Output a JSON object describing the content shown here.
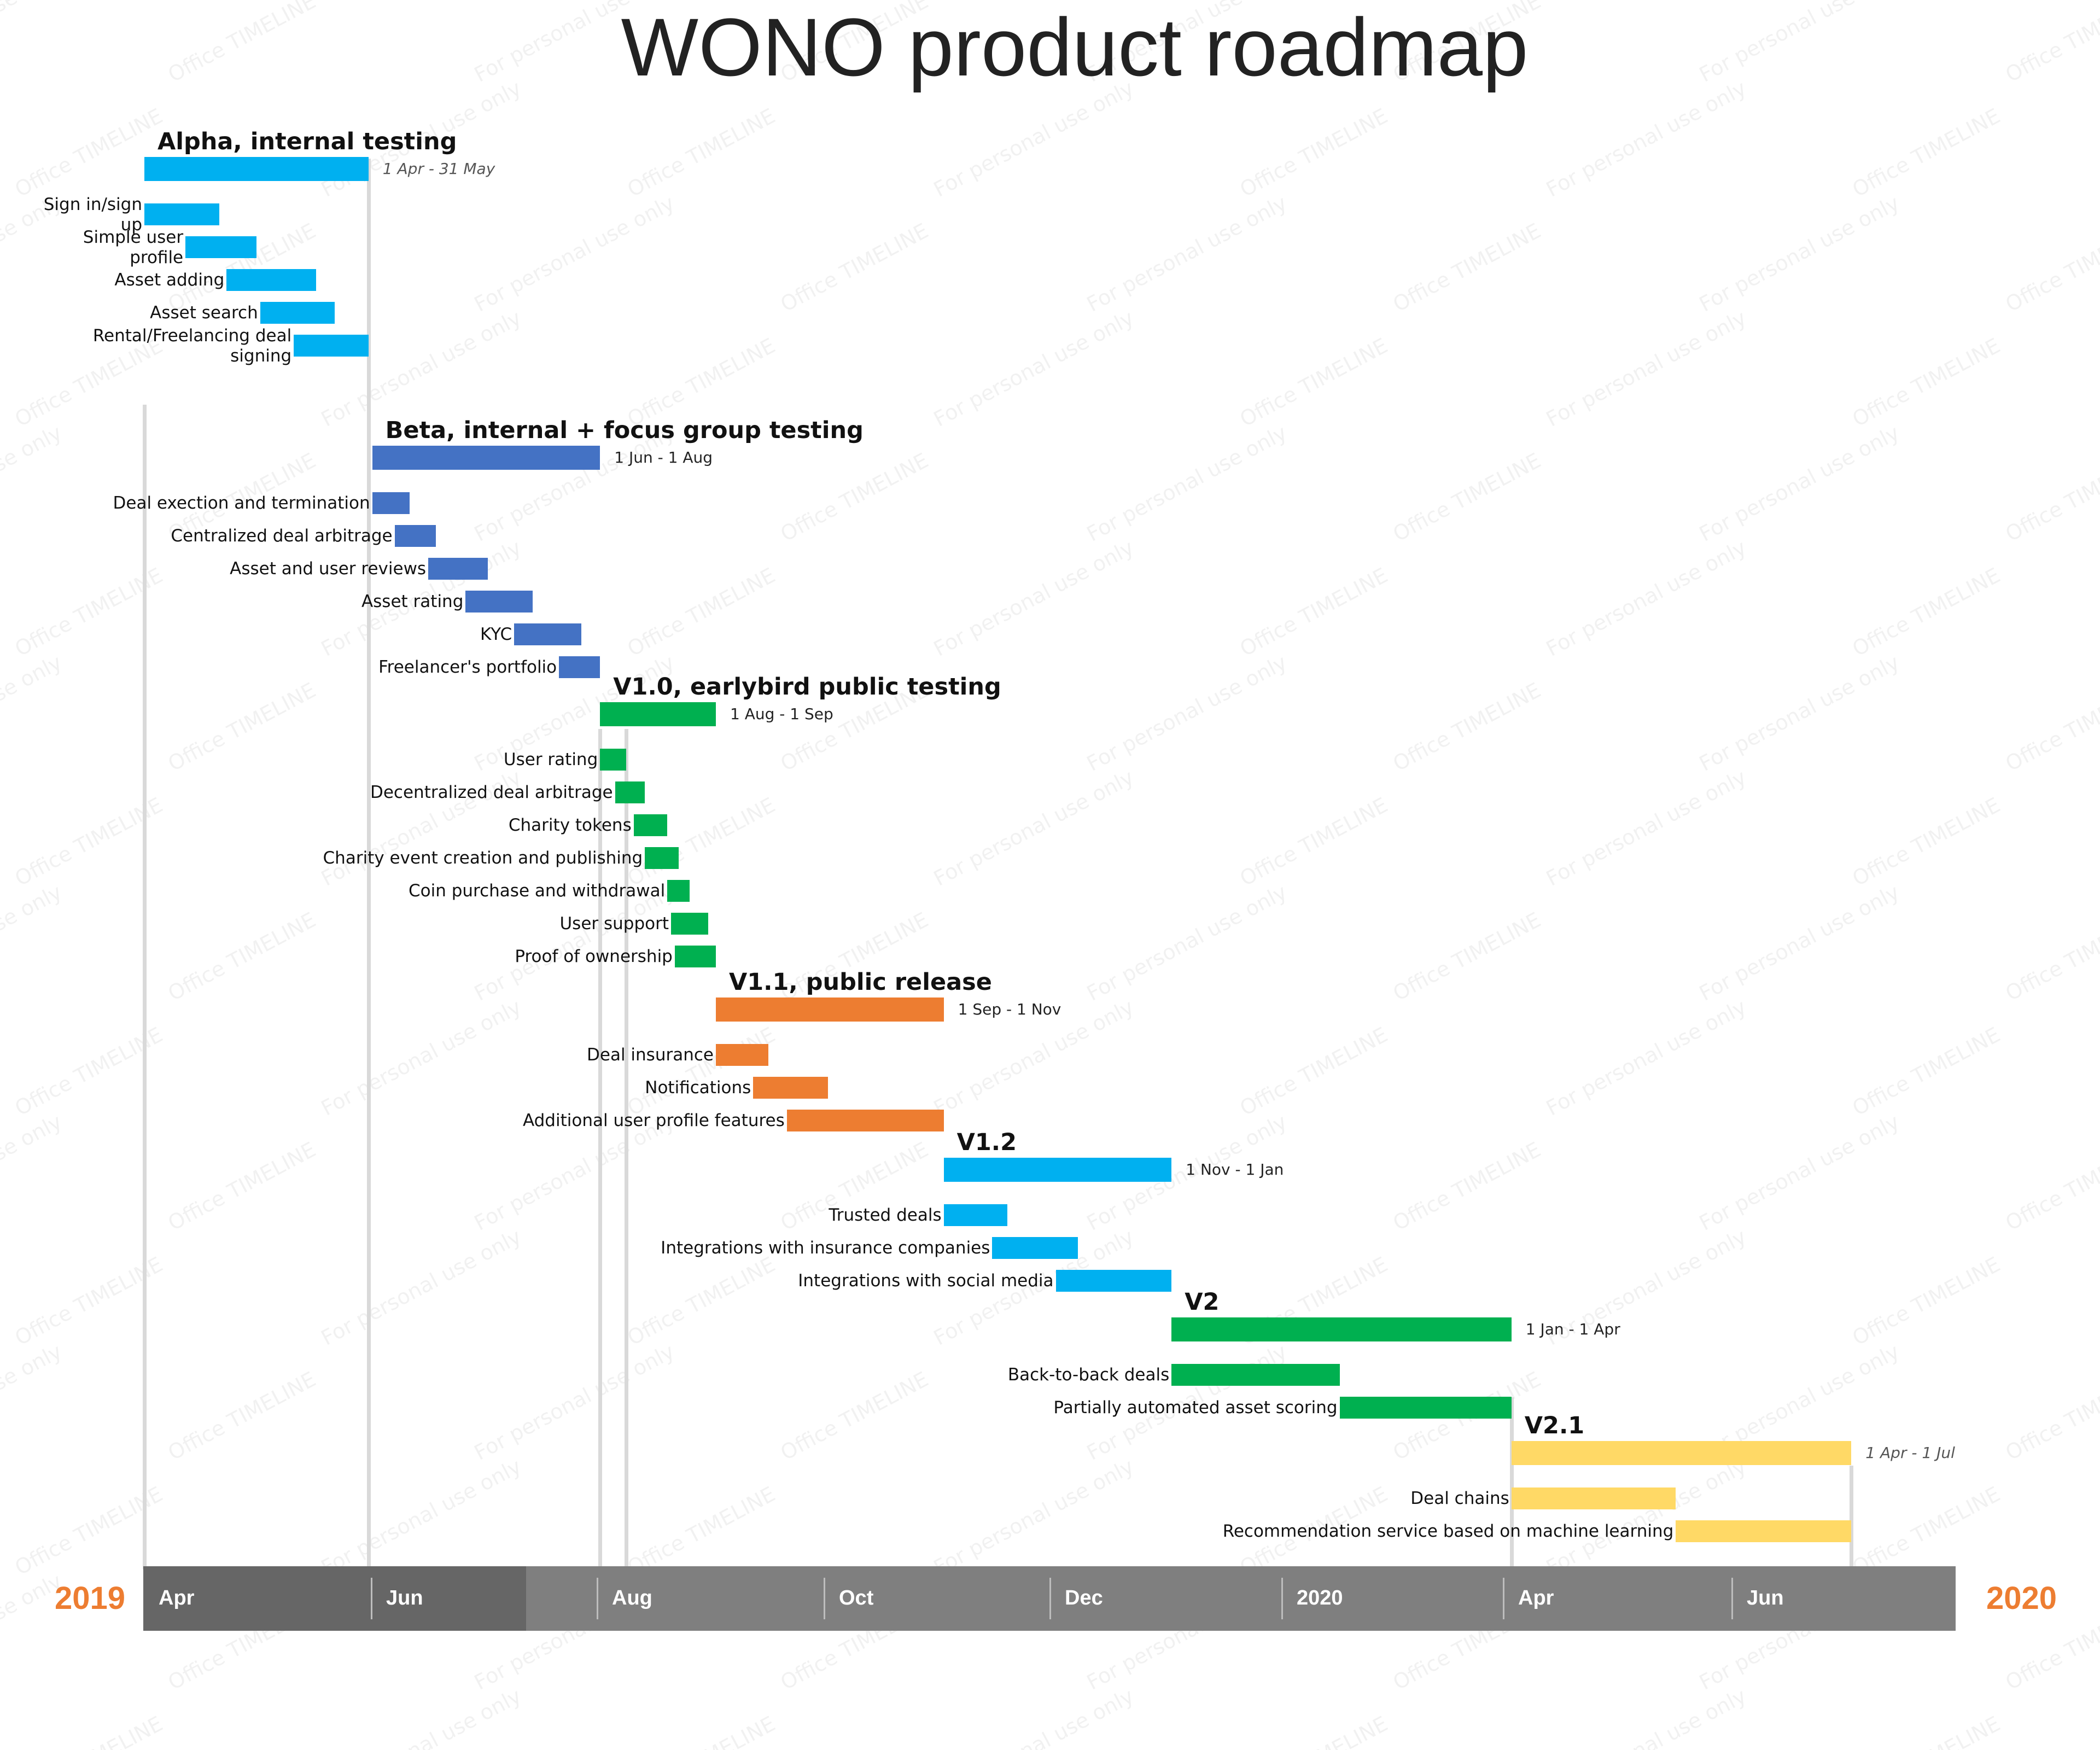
{
  "title": "WONO product roadmap",
  "watermark_texts": [
    "For personal use only",
    "Office TIMELINE"
  ],
  "colors": {
    "alpha": "#00b0f0",
    "beta": "#4472c4",
    "v10": "#00b050",
    "v11": "#ed7d31",
    "v12": "#00b0f0",
    "v2": "#00b050",
    "v21": "#ffd966",
    "axis_dark": "#666666",
    "axis_light": "#7f7f7f",
    "year": "#ed7d31",
    "gridline": "#d9d9d9"
  },
  "axis": {
    "start_year": "2019",
    "end_year": "2020",
    "months": [
      "Apr",
      "Jun",
      "Aug",
      "Oct",
      "Dec",
      "2020",
      "Apr",
      "Jun"
    ],
    "range": [
      "2019-04-01",
      "2020-07-31"
    ]
  },
  "groups": [
    {
      "label": "Alpha, internal testing",
      "range": "1 Apr - 31 May",
      "range_style": "italic",
      "color_key": "alpha",
      "start": "2019-04-01",
      "end": "2019-05-31",
      "tasks": [
        {
          "label": "Sign in/sign up",
          "start": "2019-04-01",
          "end": "2019-04-21"
        },
        {
          "label": "Simple user profile",
          "start": "2019-04-12",
          "end": "2019-05-01"
        },
        {
          "label": "Asset adding",
          "start": "2019-04-23",
          "end": "2019-05-17"
        },
        {
          "label": "Asset search",
          "start": "2019-05-02",
          "end": "2019-05-22"
        },
        {
          "label": "Rental/Freelancing deal signing",
          "start": "2019-05-11",
          "end": "2019-05-31"
        }
      ]
    },
    {
      "label": "Beta, internal + focus group testing",
      "range": "1 Jun - 1 Aug",
      "range_style": "normal",
      "color_key": "beta",
      "start": "2019-06-01",
      "end": "2019-08-01",
      "tasks": [
        {
          "label": "Deal exection and termination",
          "start": "2019-06-01",
          "end": "2019-06-11"
        },
        {
          "label": "Centralized deal arbitrage",
          "start": "2019-06-07",
          "end": "2019-06-18"
        },
        {
          "label": "Asset and user reviews",
          "start": "2019-06-16",
          "end": "2019-07-02"
        },
        {
          "label": "Asset rating",
          "start": "2019-06-26",
          "end": "2019-07-14"
        },
        {
          "label": "KYC",
          "start": "2019-07-09",
          "end": "2019-07-27"
        },
        {
          "label": "Freelancer's portfolio",
          "start": "2019-07-21",
          "end": "2019-08-01"
        }
      ]
    },
    {
      "label": "V1.0, earlybird public testing",
      "range": "1 Aug - 1 Sep",
      "range_style": "normal",
      "color_key": "v10",
      "start": "2019-08-01",
      "end": "2019-09-01",
      "tasks": [
        {
          "label": "User rating",
          "start": "2019-08-01",
          "end": "2019-08-08"
        },
        {
          "label": "Decentralized deal arbitrage",
          "start": "2019-08-05",
          "end": "2019-08-13"
        },
        {
          "label": "Charity tokens",
          "start": "2019-08-10",
          "end": "2019-08-19"
        },
        {
          "label": "Charity event creation and publishing",
          "start": "2019-08-13",
          "end": "2019-08-22"
        },
        {
          "label": "Coin purchase and withdrawal",
          "start": "2019-08-19",
          "end": "2019-08-25"
        },
        {
          "label": "User support",
          "start": "2019-08-20",
          "end": "2019-08-30"
        },
        {
          "label": "Proof of ownership",
          "start": "2019-08-21",
          "end": "2019-09-01"
        }
      ]
    },
    {
      "label": "V1.1, public release",
      "range": "1 Sep - 1 Nov",
      "range_style": "normal",
      "color_key": "v11",
      "start": "2019-09-01",
      "end": "2019-11-01",
      "tasks": [
        {
          "label": "Deal insurance",
          "start": "2019-09-01",
          "end": "2019-09-15"
        },
        {
          "label": "Notifications",
          "start": "2019-09-11",
          "end": "2019-10-01"
        },
        {
          "label": "Additional user profile features",
          "start": "2019-09-20",
          "end": "2019-11-01"
        }
      ]
    },
    {
      "label": "V1.2",
      "range": "1 Nov - 1 Jan",
      "range_style": "normal",
      "color_key": "v12",
      "start": "2019-11-01",
      "end": "2020-01-01",
      "tasks": [
        {
          "label": "Trusted deals",
          "start": "2019-11-01",
          "end": "2019-11-18"
        },
        {
          "label": "Integrations with insurance companies",
          "start": "2019-11-14",
          "end": "2019-12-07"
        },
        {
          "label": "Integrations with social media",
          "start": "2019-12-01",
          "end": "2020-01-01"
        }
      ]
    },
    {
      "label": "V2",
      "range": "1 Jan - 1 Apr",
      "range_style": "normal",
      "color_key": "v2",
      "start": "2020-01-01",
      "end": "2020-04-01",
      "tasks": [
        {
          "label": "Back-to-back deals",
          "start": "2020-01-01",
          "end": "2020-02-15"
        },
        {
          "label": "Partially automated asset scoring",
          "start": "2020-02-15",
          "end": "2020-04-01"
        }
      ]
    },
    {
      "label": "V2.1",
      "range": "1 Apr - 1 Jul",
      "range_style": "italic",
      "color_key": "v21",
      "start": "2020-04-01",
      "end": "2020-07-01",
      "tasks": [
        {
          "label": "Deal chains",
          "start": "2020-04-01",
          "end": "2020-05-15"
        },
        {
          "label": "Recommendation service based on machine learning",
          "start": "2020-05-15",
          "end": "2020-07-01"
        }
      ]
    }
  ]
}
